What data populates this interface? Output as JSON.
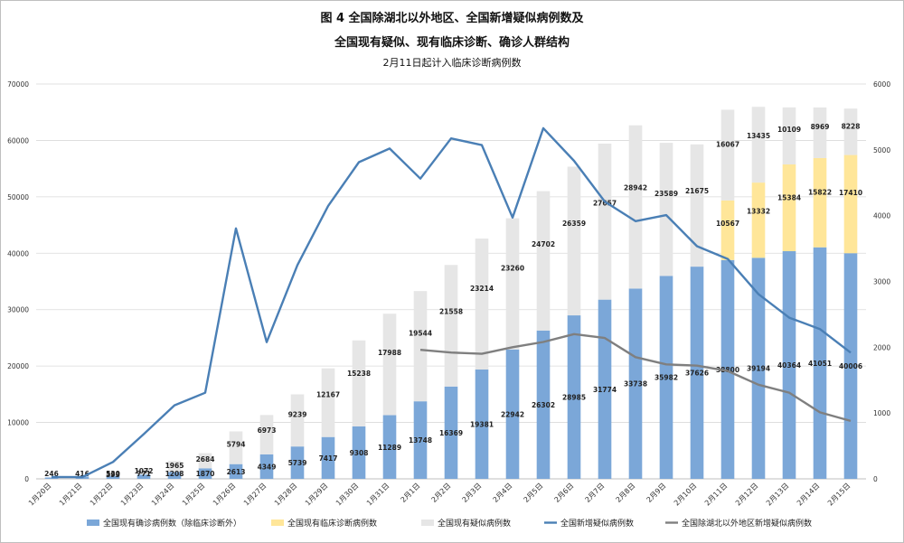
{
  "titles": {
    "line1": "图 4 全国除湖北以外地区、全国新增疑似病例数及",
    "line2": "全国现有疑似、现有临床诊断、确诊人群结构",
    "line3": "2月11日起计入临床诊断病例数"
  },
  "chart_data": {
    "type": "bar",
    "categories": [
      "1月20日",
      "1月21日",
      "1月22日",
      "1月23日",
      "1月24日",
      "1月25日",
      "1月26日",
      "1月27日",
      "1月28日",
      "1月29日",
      "1月30日",
      "1月31日",
      "2月1日",
      "2月2日",
      "2月3日",
      "2月4日",
      "2月5日",
      "2月6日",
      "2月7日",
      "2月8日",
      "2月9日",
      "2月10日",
      "2月11日",
      "2月12日",
      "2月13日",
      "2月14日",
      "2月15日"
    ],
    "y_left": {
      "min": 0,
      "max": 70000,
      "ticks": [
        0,
        10000,
        20000,
        30000,
        40000,
        50000,
        60000,
        70000
      ]
    },
    "y_right": {
      "min": 0,
      "max": 6000,
      "ticks": [
        0,
        1000,
        2000,
        3000,
        4000,
        5000,
        6000
      ]
    },
    "grid": true,
    "legend_position": "bottom",
    "series": [
      {
        "name": "全国现有确诊病例数（除临床诊断外）",
        "kind": "bar",
        "axis": "left",
        "color": "#7ba7d8",
        "values": [
          246,
          416,
          530,
          771,
          1208,
          1870,
          2613,
          4349,
          5739,
          7417,
          9308,
          11289,
          13748,
          16369,
          19381,
          22942,
          26302,
          28985,
          31774,
          33738,
          35982,
          37626,
          38800,
          39194,
          40364,
          41051,
          40006
        ]
      },
      {
        "name": "全国现有临床诊断病例数",
        "kind": "bar",
        "axis": "left",
        "color": "#ffe699",
        "values": [
          null,
          null,
          null,
          null,
          null,
          null,
          null,
          null,
          null,
          null,
          null,
          null,
          null,
          null,
          null,
          null,
          null,
          null,
          null,
          null,
          null,
          null,
          10567,
          13332,
          15384,
          15822,
          17410
        ]
      },
      {
        "name": "全国现有疑似病例数",
        "kind": "bar",
        "axis": "left",
        "color": "#e6e6e6",
        "values": [
          null,
          null,
          393,
          1072,
          1965,
          2684,
          5794,
          6973,
          9239,
          12167,
          15238,
          17988,
          19544,
          21558,
          23214,
          23260,
          24702,
          26359,
          27657,
          28942,
          23589,
          21675,
          16067,
          13435,
          10109,
          8969,
          8228
        ]
      },
      {
        "name": "全国新增疑似病例数",
        "kind": "line",
        "axis": "right",
        "color": "#4a7fb5",
        "values": [
          27,
          26,
          257,
          680,
          1118,
          1309,
          3806,
          2077,
          3248,
          4148,
          4812,
          5019,
          4562,
          5173,
          5072,
          3971,
          5328,
          4833,
          4214,
          3916,
          4008,
          3536,
          3342,
          2807,
          2450,
          2277,
          1918
        ]
      },
      {
        "name": "全国除湖北以外地区新增疑似病例数",
        "kind": "line",
        "axis": "right",
        "color": "#7f7f7f",
        "values": [
          null,
          null,
          null,
          null,
          null,
          null,
          null,
          null,
          null,
          null,
          null,
          null,
          1960,
          1920,
          1900,
          2000,
          2080,
          2200,
          2140,
          1850,
          1740,
          1720,
          1640,
          1430,
          1310,
          1010,
          880
        ]
      }
    ]
  }
}
